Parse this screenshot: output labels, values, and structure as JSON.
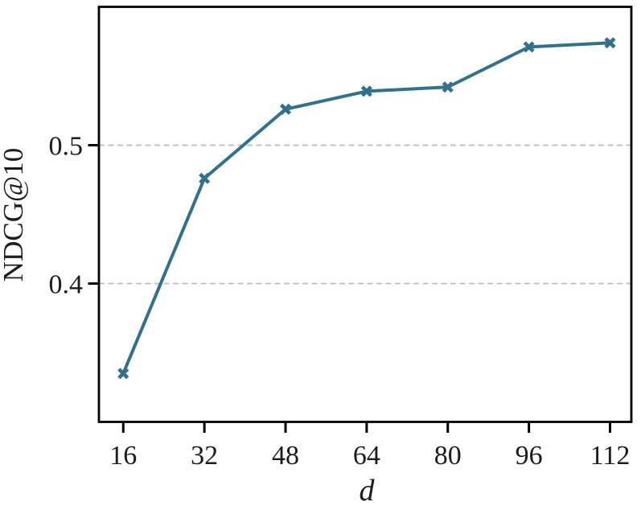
{
  "chart_data": {
    "type": "line",
    "title": "",
    "xlabel": "d",
    "ylabel": "NDCG@10",
    "x": [
      16,
      32,
      48,
      64,
      80,
      96,
      112
    ],
    "series": [
      {
        "name": "NDCG@10",
        "values": [
          0.335,
          0.476,
          0.526,
          0.539,
          0.542,
          0.571,
          0.574
        ]
      }
    ],
    "x_ticks": [
      16,
      32,
      48,
      64,
      80,
      96,
      112
    ],
    "x_tick_labels": [
      "16",
      "32",
      "48",
      "64",
      "80",
      "96",
      "112"
    ],
    "y_ticks": [
      0.4,
      0.5
    ],
    "y_tick_labels": [
      "0.4",
      "0.5"
    ],
    "xlim": [
      11.2,
      116.2
    ],
    "ylim": [
      0.3,
      0.6
    ],
    "grid": "horizontal-dashed-at-yticks",
    "legend": "none",
    "marker": "X",
    "line_color": "#31718C",
    "grid_color": "#bcbcbc",
    "axis_color": "#000000",
    "text_color": "#1c1c1c"
  }
}
